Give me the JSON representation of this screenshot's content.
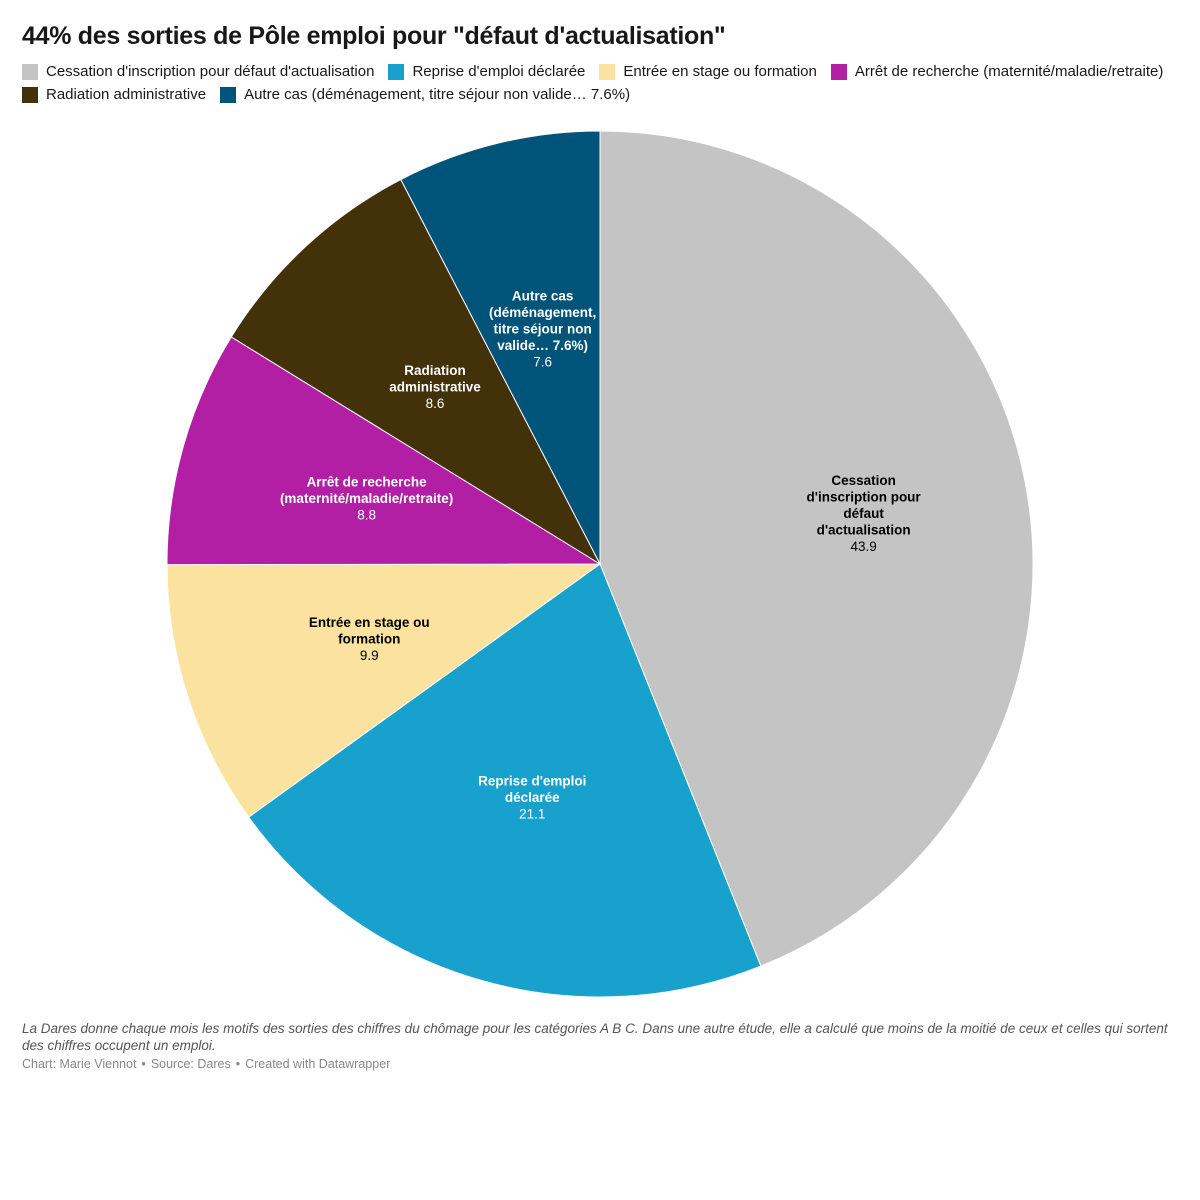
{
  "title": "44% des sorties de Pôle emploi pour \"défaut d'actualisation\"",
  "chart_data": {
    "type": "pie",
    "title": "44% des sorties de Pôle emploi pour \"défaut d'actualisation\"",
    "legend_position": "top",
    "slices": [
      {
        "label": "Cessation d'inscription pour défaut d'actualisation",
        "value": 43.9,
        "color": "#c4c4c4",
        "label_lines": [
          "Cessation",
          "d'inscription pour",
          "défaut",
          "d'actualisation"
        ],
        "label_color": "#000000"
      },
      {
        "label": "Reprise d'emploi déclarée",
        "value": 21.1,
        "color": "#18a1cd",
        "label_lines": [
          "Reprise d'emploi",
          "déclarée"
        ],
        "label_color": "#ffffff"
      },
      {
        "label": "Entrée en stage ou formation",
        "value": 9.9,
        "color": "#fbe39f",
        "label_lines": [
          "Entrée en stage ou",
          "formation"
        ],
        "label_color": "#000000"
      },
      {
        "label": "Arrêt de recherche (maternité/maladie/retraite)",
        "value": 8.8,
        "color": "#b21fa4",
        "label_lines": [
          "Arrêt de recherche",
          "(maternité/maladie/retraite)"
        ],
        "label_color": "#ffffff"
      },
      {
        "label": "Radiation administrative",
        "value": 8.6,
        "color": "#43310a",
        "label_lines": [
          "Radiation",
          "administrative"
        ],
        "label_color": "#ffffff"
      },
      {
        "label": "Autre cas (déménagement, titre séjour non valide… 7.6%)",
        "value": 7.6,
        "color": "#005379",
        "label_lines": [
          "Autre cas",
          "(déménagement,",
          "titre séjour non",
          "valide… 7.6%)"
        ],
        "label_color": "#ffffff"
      }
    ]
  },
  "notes": "La Dares donne chaque mois les motifs des sorties des chiffres du chômage pour les catégories A B C. Dans une autre étude, elle a calculé que moins de la moitié de ceux et celles qui sortent des chiffres occupent un emploi.",
  "credits": {
    "chart": "Chart: Marie Viennot",
    "source": "Source: Dares",
    "tool": "Created with Datawrapper"
  }
}
